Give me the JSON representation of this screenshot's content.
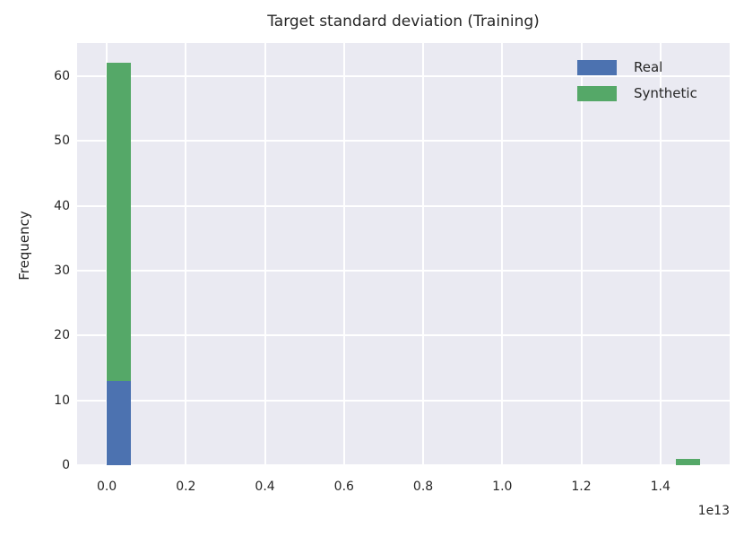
{
  "chart_data": {
    "type": "histogram",
    "stacked": true,
    "title": "Target standard deviation (Training)",
    "xlabel": "",
    "ylabel": "Frequency",
    "x_offset_text": "1e13",
    "x_unit_multiplier": "1e13",
    "grid": true,
    "plot_bg_color": "#eaeaf2",
    "grid_color": "#ffffff",
    "text_color": "#262626",
    "xlim": [
      -0.075,
      1.575
    ],
    "ylim": [
      0,
      65.1
    ],
    "xticks": [
      0.0,
      0.2,
      0.4,
      0.6,
      0.8,
      1.0,
      1.2,
      1.4
    ],
    "xtick_labels": [
      "0.0",
      "0.2",
      "0.4",
      "0.6",
      "0.8",
      "1.0",
      "1.2",
      "1.4"
    ],
    "yticks": [
      0,
      10,
      20,
      30,
      40,
      50,
      60
    ],
    "ytick_labels": [
      "0",
      "10",
      "20",
      "30",
      "40",
      "50",
      "60"
    ],
    "legend": {
      "position": "upper right",
      "entries": [
        "Real",
        "Synthetic"
      ]
    },
    "series": [
      {
        "name": "Real",
        "color": "#4c72b0"
      },
      {
        "name": "Synthetic",
        "color": "#55a868"
      }
    ],
    "bars": [
      {
        "x0": 0.0,
        "x1": 0.06,
        "segments": [
          {
            "series": 0,
            "y0": 0,
            "y1": 13
          },
          {
            "series": 1,
            "y0": 13,
            "y1": 62
          }
        ]
      },
      {
        "x0": 1.44,
        "x1": 1.5,
        "segments": [
          {
            "series": 1,
            "y0": 0,
            "y1": 1
          }
        ]
      }
    ]
  }
}
